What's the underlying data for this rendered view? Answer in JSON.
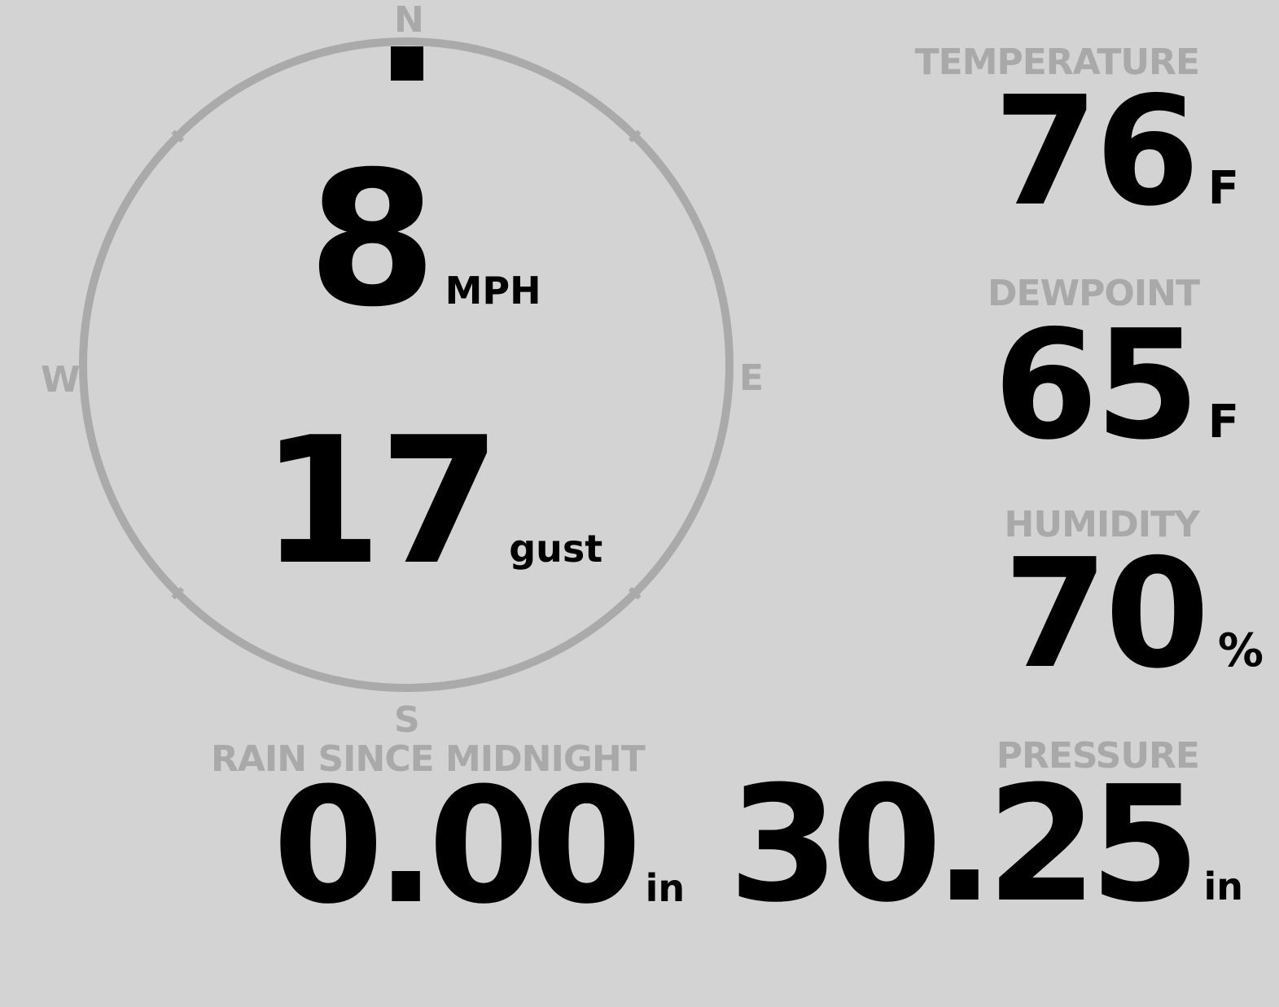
{
  "wind": {
    "speed": "8",
    "speed_unit": "MPH",
    "gust": "17",
    "gust_unit": "gust",
    "direction_deg": 0,
    "compass": {
      "n": "N",
      "e": "E",
      "s": "S",
      "w": "W"
    }
  },
  "temperature": {
    "label": "TEMPERATURE",
    "value": "76",
    "unit": "F"
  },
  "dewpoint": {
    "label": "DEWPOINT",
    "value": "65",
    "unit": "F"
  },
  "humidity": {
    "label": "HUMIDITY",
    "value": "70",
    "unit": "%"
  },
  "rain": {
    "label": "RAIN SINCE MIDNIGHT",
    "value": "0.00",
    "unit": "in"
  },
  "pressure": {
    "label": "PRESSURE",
    "value": "30.25",
    "unit": "in"
  },
  "colors": {
    "background": "#d3d3d3",
    "label": "#a9a9a9",
    "value": "#000000",
    "dial": "#aaaaaa"
  }
}
